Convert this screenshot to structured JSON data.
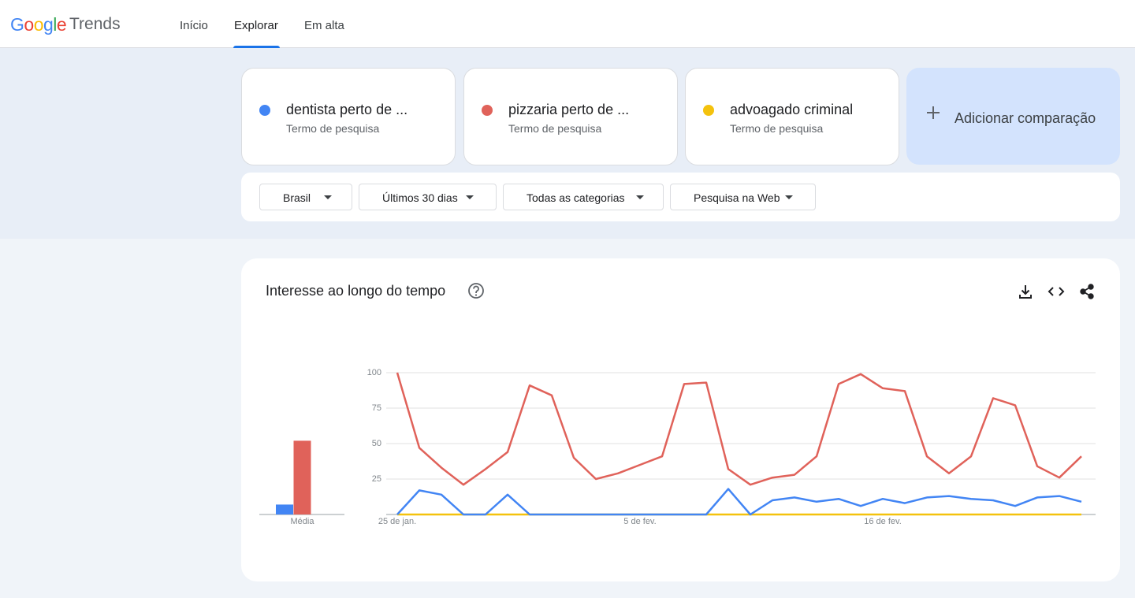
{
  "header": {
    "logo": "Google",
    "product": "Trends",
    "nav": [
      "Início",
      "Explorar",
      "Em alta"
    ]
  },
  "term_subtitles": [
    "Termo de pesquisa",
    "Termo de pesquisa",
    "Termo de pesquisa"
  ],
  "add_comparison": "Adicionar comparação",
  "filters": [
    "Brasil",
    "Últimos 30 dias",
    "Todas as categorias",
    "Pesquisa na Web"
  ],
  "chart_data": [
    {
      "type": "line",
      "title": "Interesse ao longo do tempo",
      "categories": [
        "25 de jan.",
        null,
        null,
        null,
        null,
        null,
        null,
        null,
        null,
        null,
        null,
        "5 de fev.",
        null,
        null,
        null,
        null,
        null,
        null,
        null,
        null,
        null,
        null,
        "16 de fev.",
        null,
        null,
        null,
        null,
        null,
        null,
        null,
        null,
        null
      ],
      "series": [
        {
          "name": "dentista perto de ...",
          "color": "#4285f4",
          "values": [
            0,
            17,
            14,
            0,
            0,
            14,
            0,
            0,
            0,
            0,
            0,
            0,
            0,
            0,
            0,
            18,
            0,
            10,
            12,
            9,
            11,
            6,
            11,
            8,
            12,
            13,
            11,
            10,
            6,
            12,
            13,
            9
          ]
        },
        {
          "name": "pizzaria perto de ...",
          "color": "#e0625a",
          "values": [
            100,
            47,
            33,
            21,
            32,
            44,
            91,
            84,
            40,
            25,
            29,
            35,
            41,
            92,
            93,
            32,
            21,
            26,
            28,
            41,
            92,
            99,
            89,
            87,
            41,
            29,
            41,
            82,
            77,
            34,
            26,
            41
          ]
        },
        {
          "name": "advoagado criminal",
          "color": "#f4c20d",
          "values": [
            0,
            0,
            0,
            0,
            0,
            0,
            0,
            0,
            0,
            0,
            0,
            0,
            0,
            0,
            0,
            0,
            0,
            0,
            0,
            0,
            0,
            0,
            0,
            0,
            0,
            0,
            0,
            0,
            0,
            0,
            0,
            0
          ]
        }
      ],
      "ylim": [
        0,
        100
      ],
      "yticks": [
        25,
        50,
        75,
        100
      ],
      "grid": true
    },
    {
      "type": "bar",
      "categories": [
        "Média"
      ],
      "series": [
        {
          "color": "#4285f4",
          "values": [
            7
          ]
        },
        {
          "color": "#e0625a",
          "values": [
            52
          ]
        },
        {
          "color": "#f4c20d",
          "values": [
            0
          ]
        }
      ],
      "ylim": [
        0,
        100
      ]
    }
  ]
}
